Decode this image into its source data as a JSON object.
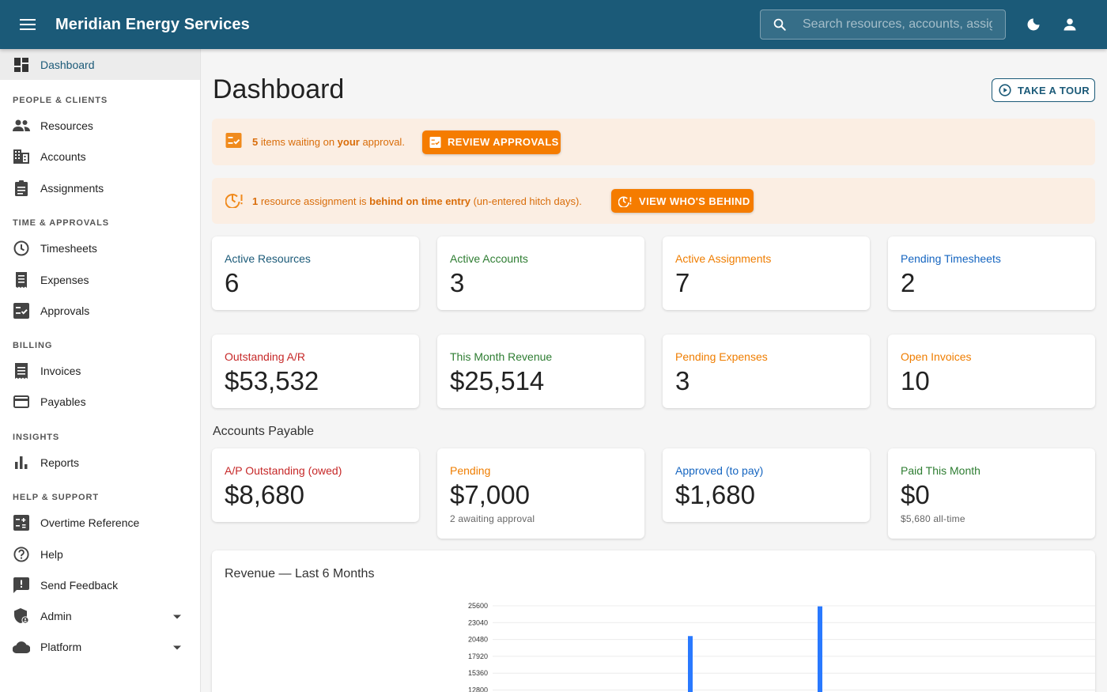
{
  "app": {
    "title": "Meridian Energy Services",
    "search_placeholder": "Search resources, accounts, assignments"
  },
  "sidebar": {
    "dashboard": "Dashboard",
    "sections": {
      "people": "PEOPLE & CLIENTS",
      "time": "TIME & APPROVALS",
      "billing": "BILLING",
      "insights": "INSIGHTS",
      "help": "HELP & SUPPORT"
    },
    "items": {
      "resources": "Resources",
      "accounts": "Accounts",
      "assignments": "Assignments",
      "timesheets": "Timesheets",
      "expenses": "Expenses",
      "approvals": "Approvals",
      "invoices": "Invoices",
      "payables": "Payables",
      "reports": "Reports",
      "overtime": "Overtime Reference",
      "help": "Help",
      "feedback": "Send Feedback",
      "admin": "Admin",
      "platform": "Platform"
    }
  },
  "main": {
    "title": "Dashboard",
    "tour_button": "TAKE A TOUR",
    "approval_alert": {
      "count": "5",
      "text1": " items waiting on ",
      "emph": "your",
      "text2": " approval.",
      "button": "REVIEW APPROVALS"
    },
    "behind_alert": {
      "count": "1",
      "text1": " resource assignment is ",
      "emph": "behind on time entry",
      "text2": " (un-entered hitch days).",
      "button": "VIEW WHO'S BEHIND"
    },
    "stats_row1": [
      {
        "label": "Active Resources",
        "value": "6",
        "color": "#1b5a78"
      },
      {
        "label": "Active Accounts",
        "value": "3",
        "color": "#2e7d32"
      },
      {
        "label": "Active Assignments",
        "value": "7",
        "color": "#ef7d00"
      },
      {
        "label": "Pending Timesheets",
        "value": "2",
        "color": "#1565c0"
      }
    ],
    "stats_row2": [
      {
        "label": "Outstanding A/R",
        "value": "$53,532",
        "color": "#c62828"
      },
      {
        "label": "This Month Revenue",
        "value": "$25,514",
        "color": "#2e7d32"
      },
      {
        "label": "Pending Expenses",
        "value": "3",
        "color": "#ef7d00"
      },
      {
        "label": "Open Invoices",
        "value": "10",
        "color": "#ef7d00"
      }
    ],
    "ap_title": "Accounts Payable",
    "ap_cards": [
      {
        "label": "A/P Outstanding (owed)",
        "value": "$8,680",
        "sub": "",
        "color": "#c62828"
      },
      {
        "label": "Pending",
        "value": "$7,000",
        "sub": "2 awaiting approval",
        "color": "#ef7d00"
      },
      {
        "label": "Approved (to pay)",
        "value": "$1,680",
        "sub": "",
        "color": "#1565c0"
      },
      {
        "label": "Paid This Month",
        "value": "$0",
        "sub": "$5,680 all-time",
        "color": "#2e7d32"
      }
    ]
  },
  "chart_data": {
    "type": "bar",
    "title": "Revenue — Last 6 Months",
    "xlabel": "",
    "ylabel": "",
    "y_ticks": [
      25600,
      23040,
      20480,
      17920,
      15360,
      12800
    ],
    "ylim": [
      0,
      25600
    ],
    "values": [
      null,
      null,
      null,
      null,
      21000,
      25514
    ],
    "bar_color": "#2979ff",
    "grid": true
  }
}
